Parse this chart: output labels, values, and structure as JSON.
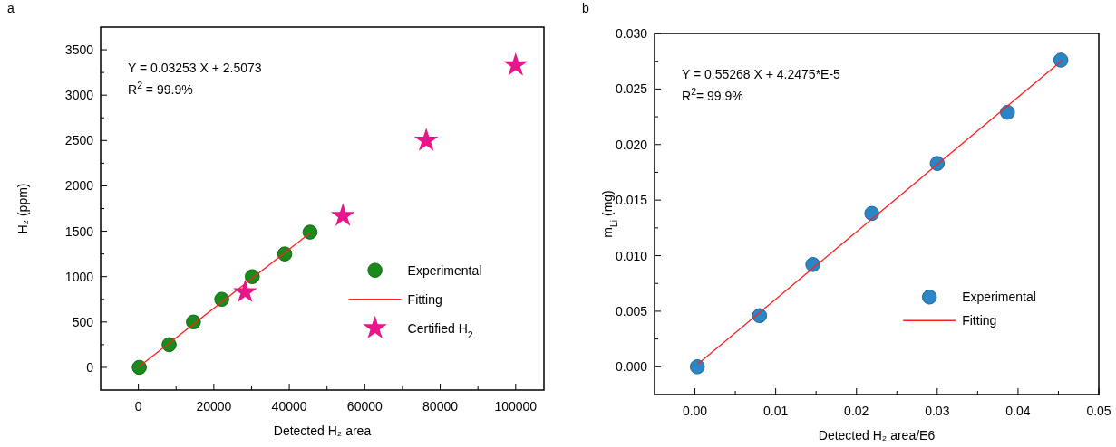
{
  "chart_data": [
    {
      "type": "scatter",
      "title": "a",
      "xlabel": "Detected H₂ area",
      "ylabel": "H₂ (ppm)",
      "xlim": [
        -10000,
        107500
      ],
      "ylim": [
        -250,
        3750
      ],
      "xticks": [
        0,
        {
          "value": 10000,
          "label": null
        },
        20000,
        {
          "value": 30000,
          "label": null
        },
        40000,
        {
          "value": 50000,
          "label": null
        },
        60000,
        {
          "value": 70000,
          "label": null
        },
        80000,
        {
          "value": 90000,
          "label": null
        },
        100000
      ],
      "yticks": [
        0,
        {
          "value": 250,
          "label": null
        },
        500,
        {
          "value": 750,
          "label": null
        },
        1000,
        {
          "value": 1250,
          "label": null
        },
        1500,
        {
          "value": 1750,
          "label": null
        },
        2000,
        {
          "value": 2250,
          "label": null
        },
        2500,
        {
          "value": 2750,
          "label": null
        },
        3000,
        {
          "value": 3250,
          "label": null
        },
        3500
      ],
      "annotations": [
        "Y = 0.03253 X + 2.5073",
        "R$^{2}$ = 99.9%"
      ],
      "legend": "right",
      "grid": false,
      "series": [
        {
          "name": "Experimental",
          "marker": "circle",
          "color": "#1a8a1a",
          "x": [
            240,
            8150,
            14600,
            22100,
            30200,
            38800,
            45500
          ],
          "values": [
            0,
            250,
            500,
            750,
            1000,
            1250,
            1490
          ]
        },
        {
          "name": "Fitting",
          "type": "line",
          "color": "#ff2020",
          "x": [
            240,
            45500
          ],
          "values": [
            10,
            1480
          ]
        },
        {
          "name": "Certified H$_{2}$",
          "marker": "star",
          "color": "#e8168a",
          "x": [
            28300,
            54200,
            76300,
            100000
          ],
          "values": [
            830,
            1670,
            2500,
            3330
          ]
        }
      ]
    },
    {
      "type": "scatter",
      "title": "b",
      "xlabel": "Detected H₂ area/E6",
      "ylabel": "m$_{Li}$ (mg)",
      "xlim": [
        -0.005,
        0.05
      ],
      "ylim": [
        -0.0025,
        0.03
      ],
      "xticks": [
        {
          "value": 0,
          "label": "0.00"
        },
        {
          "value": 0.005,
          "label": null
        },
        {
          "value": 0.01,
          "label": "0.01"
        },
        {
          "value": 0.015,
          "label": null
        },
        {
          "value": 0.02,
          "label": "0.02"
        },
        {
          "value": 0.025,
          "label": null
        },
        {
          "value": 0.03,
          "label": "0.03"
        },
        {
          "value": 0.035,
          "label": null
        },
        {
          "value": 0.04,
          "label": "0.04"
        },
        {
          "value": 0.045,
          "label": null
        },
        {
          "value": 0.05,
          "label": "0.05"
        }
      ],
      "yticks": [
        {
          "value": 0,
          "label": "0.000"
        },
        {
          "value": 0.0025,
          "label": null
        },
        0.005,
        {
          "value": 0.0075,
          "label": null
        },
        {
          "value": 0.01,
          "label": "0.010"
        },
        {
          "value": 0.0125,
          "label": null
        },
        0.015,
        {
          "value": 0.0175,
          "label": null
        },
        {
          "value": 0.02,
          "label": "0.020"
        },
        {
          "value": 0.0225,
          "label": null
        },
        0.025,
        {
          "value": 0.0275,
          "label": null
        },
        {
          "value": 0.03,
          "label": "0.030"
        }
      ],
      "annotations": [
        "Y = 0.55268 X + 4.2475*E-5",
        "R$^{2}$= 99.9%"
      ],
      "legend": "bottom right",
      "grid": false,
      "series": [
        {
          "name": "Experimental",
          "marker": "circle",
          "color": "#2a86c4",
          "x": [
            0.0003,
            0.008,
            0.0146,
            0.0219,
            0.03,
            0.0387,
            0.0453
          ],
          "values": [
            0,
            0.0046,
            0.0092,
            0.0138,
            0.0183,
            0.0229,
            0.0276
          ]
        },
        {
          "name": "Fitting",
          "type": "line",
          "color": "#ff2020",
          "x": [
            0.0003,
            0.0455
          ],
          "values": [
            0.0002,
            0.0276
          ]
        }
      ]
    }
  ]
}
